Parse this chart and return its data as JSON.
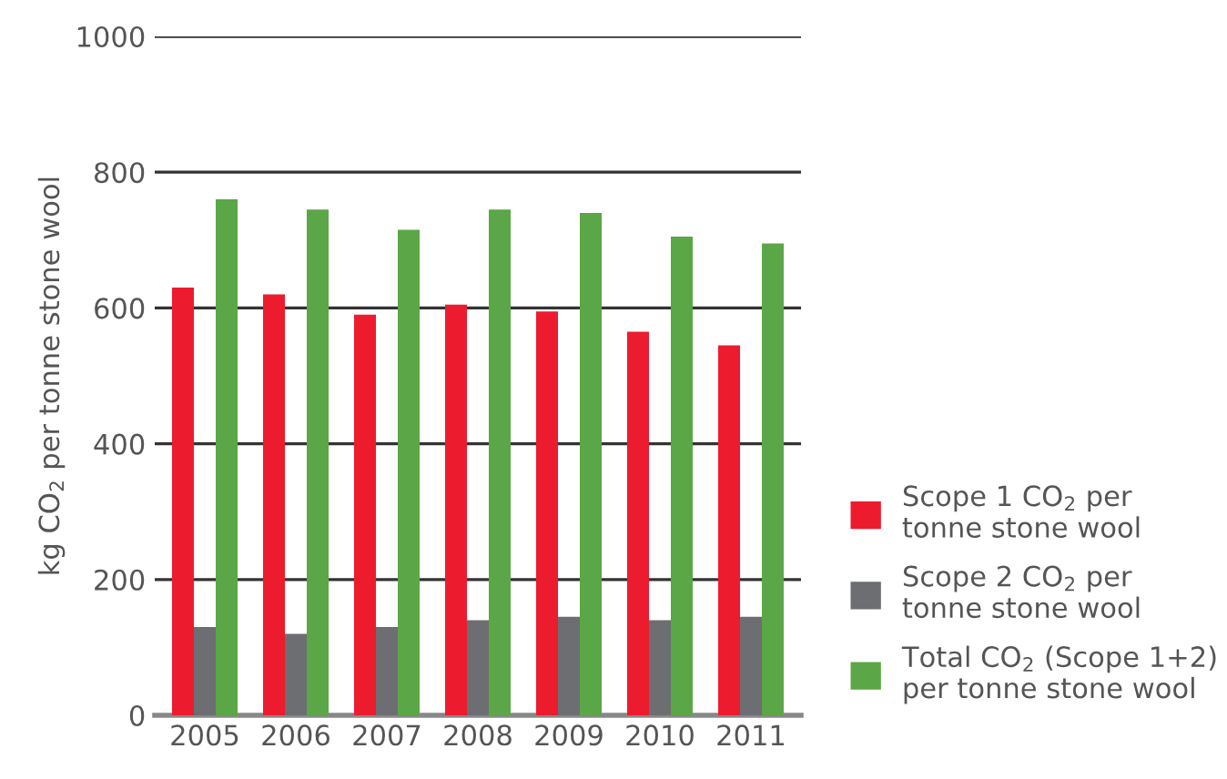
{
  "chart_data": {
    "type": "bar",
    "ylabel": "kg CO$_{2}$ per tonne stone wool",
    "categories": [
      "2005",
      "2006",
      "2007",
      "2008",
      "2009",
      "2010",
      "2011"
    ],
    "series": [
      {
        "name": "Scope 1 CO$_{2}$ per\ntonne stone wool",
        "color": "#ec1c2e",
        "values": [
          630,
          620,
          590,
          605,
          595,
          565,
          545
        ]
      },
      {
        "name": "Scope 2 CO$_{2}$ per\ntonne stone wool",
        "color": "#6d6e71",
        "values": [
          130,
          120,
          130,
          140,
          145,
          140,
          145
        ]
      },
      {
        "name": "Total CO$_{2}$ (Scope 1+2)\nper tonne stone wool",
        "color": "#5ba646",
        "values": [
          760,
          745,
          715,
          745,
          740,
          705,
          695
        ]
      }
    ],
    "ylim": [
      0,
      1000
    ],
    "yticks": [
      0,
      200,
      400,
      600,
      800,
      1000
    ],
    "grid": "y",
    "legend": "bottom right"
  }
}
